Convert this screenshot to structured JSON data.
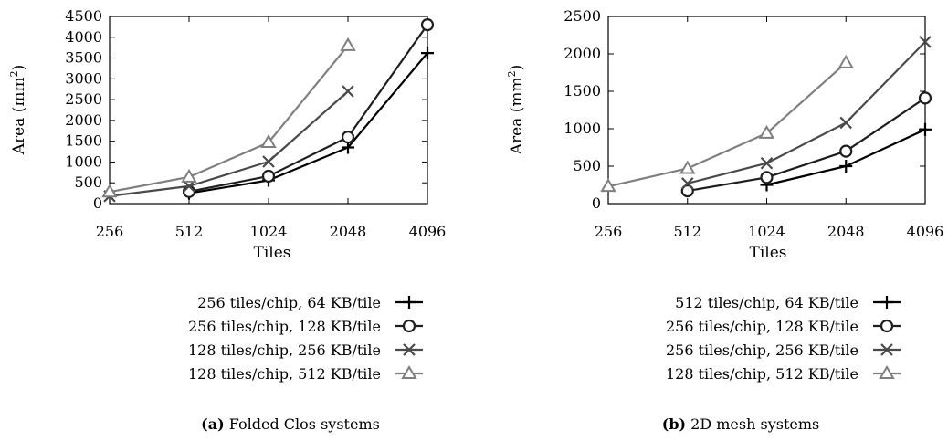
{
  "chart_data": [
    {
      "type": "line",
      "caption_tag": "(a)",
      "caption_text": "Folded Clos systems",
      "xlabel": "Tiles",
      "ylabel": "Area (mm",
      "ylabel_sup": "2",
      "ylabel_close": ")",
      "x_ticks": [
        "256",
        "512",
        "1024",
        "2048",
        "4096"
      ],
      "y_ticks": [
        "0",
        "500",
        "1000",
        "1500",
        "2000",
        "2500",
        "3000",
        "3500",
        "4000",
        "4500"
      ],
      "ylim": [
        0,
        4500
      ],
      "grid": false,
      "legend_position": "below",
      "series": [
        {
          "name": "256 tiles/chip, 64 KB/tile",
          "marker": "plus",
          "color": "#000000",
          "x": [
            512,
            1024,
            2048,
            4096
          ],
          "y": [
            250,
            560,
            1350,
            3620
          ]
        },
        {
          "name": "256 tiles/chip, 128 KB/tile",
          "marker": "circle",
          "color": "#1e1e1e",
          "x": [
            512,
            1024,
            2048,
            4096
          ],
          "y": [
            290,
            660,
            1600,
            4300
          ]
        },
        {
          "name": "128 tiles/chip, 256 KB/tile",
          "marker": "cross",
          "color": "#4a4a4a",
          "x": [
            256,
            512,
            1024,
            2048
          ],
          "y": [
            180,
            420,
            1010,
            2700
          ]
        },
        {
          "name": "128 tiles/chip, 512 KB/tile",
          "marker": "triangle",
          "color": "#7f7f7f",
          "x": [
            256,
            512,
            1024,
            2048
          ],
          "y": [
            280,
            640,
            1470,
            3800
          ]
        }
      ]
    },
    {
      "type": "line",
      "caption_tag": "(b)",
      "caption_text": "2D mesh systems",
      "xlabel": "Tiles",
      "ylabel": "Area (mm",
      "ylabel_sup": "2",
      "ylabel_close": ")",
      "x_ticks": [
        "256",
        "512",
        "1024",
        "2048",
        "4096"
      ],
      "y_ticks": [
        "0",
        "500",
        "1000",
        "1500",
        "2000",
        "2500"
      ],
      "ylim": [
        0,
        2500
      ],
      "grid": false,
      "legend_position": "below",
      "series": [
        {
          "name": "512 tiles/chip, 64 KB/tile",
          "marker": "plus",
          "color": "#000000",
          "x": [
            1024,
            2048,
            4096
          ],
          "y": [
            250,
            500,
            990
          ]
        },
        {
          "name": "256 tiles/chip, 128 KB/tile",
          "marker": "circle",
          "color": "#1e1e1e",
          "x": [
            512,
            1024,
            2048,
            4096
          ],
          "y": [
            170,
            350,
            700,
            1410
          ]
        },
        {
          "name": "256 tiles/chip, 256 KB/tile",
          "marker": "cross",
          "color": "#4a4a4a",
          "x": [
            512,
            1024,
            2048,
            4096
          ],
          "y": [
            270,
            540,
            1080,
            2160
          ]
        },
        {
          "name": "128 tiles/chip, 512 KB/tile",
          "marker": "triangle",
          "color": "#7f7f7f",
          "x": [
            256,
            512,
            1024,
            2048
          ],
          "y": [
            230,
            470,
            940,
            1880
          ]
        }
      ]
    }
  ]
}
